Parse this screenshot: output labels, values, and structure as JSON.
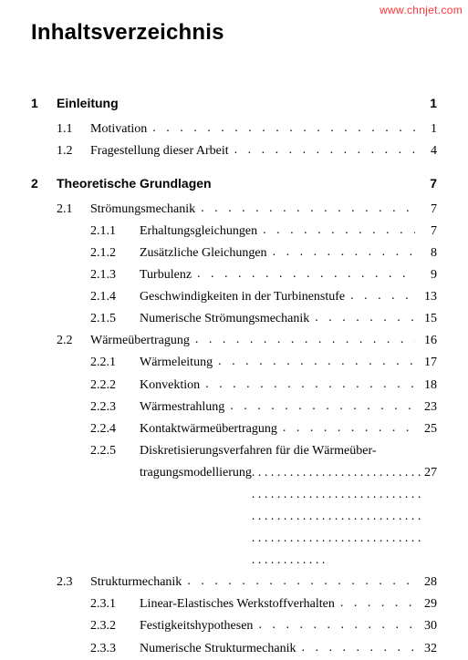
{
  "watermark": {
    "text": "www.chnjet.com",
    "color": "#ff3333"
  },
  "title": "Inhaltsverzeichnis",
  "leader_char": ".",
  "chapters": [
    {
      "number": "1",
      "title": "Einleitung",
      "page": "1",
      "sections": [
        {
          "number": "1.1",
          "title": "Motivation",
          "page": "1",
          "subsections": []
        },
        {
          "number": "1.2",
          "title": "Fragestellung dieser Arbeit",
          "page": "4",
          "subsections": []
        }
      ]
    },
    {
      "number": "2",
      "title": "Theoretische Grundlagen",
      "page": "7",
      "sections": [
        {
          "number": "2.1",
          "title": "Strömungsmechanik",
          "page": "7",
          "subsections": [
            {
              "number": "2.1.1",
              "title": "Erhaltungsgleichungen",
              "page": "7"
            },
            {
              "number": "2.1.2",
              "title": "Zusätzliche Gleichungen",
              "page": "8"
            },
            {
              "number": "2.1.3",
              "title": "Turbulenz",
              "page": "9"
            },
            {
              "number": "2.1.4",
              "title": "Geschwindigkeiten in der Turbinenstufe",
              "page": "13"
            },
            {
              "number": "2.1.5",
              "title": "Numerische Strömungsmechanik",
              "page": "15"
            }
          ]
        },
        {
          "number": "2.2",
          "title": "Wärmeübertragung",
          "page": "16",
          "subsections": [
            {
              "number": "2.2.1",
              "title": "Wärmeleitung",
              "page": "17"
            },
            {
              "number": "2.2.2",
              "title": "Konvektion",
              "page": "18"
            },
            {
              "number": "2.2.3",
              "title": "Wärmestrahlung",
              "page": "23"
            },
            {
              "number": "2.2.4",
              "title": "Kontaktwärmeübertragung",
              "page": "25"
            },
            {
              "number": "2.2.5",
              "title_line1": "Diskretisierungsverfahren für die Wärmeüber-",
              "title_line2": "tragungsmodellierung",
              "page": "27",
              "multiline": true
            }
          ]
        },
        {
          "number": "2.3",
          "title": "Strukturmechanik",
          "page": "28",
          "subsections": [
            {
              "number": "2.3.1",
              "title": "Linear-Elastisches Werkstoffverhalten",
              "page": "29"
            },
            {
              "number": "2.3.2",
              "title": "Festigkeitshypothesen",
              "page": "30"
            },
            {
              "number": "2.3.3",
              "title": "Numerische Strukturmechanik",
              "page": "32"
            }
          ]
        }
      ]
    }
  ]
}
